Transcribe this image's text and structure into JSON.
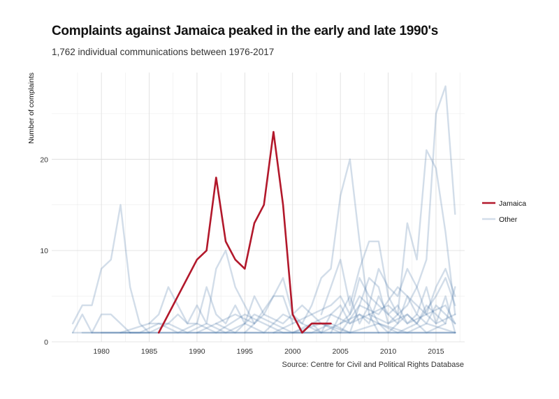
{
  "header": {
    "title": "Complaints against Jamaica peaked in the early and late 1990's",
    "subtitle": "1,762 individual communications between 1976-2017"
  },
  "footer": {
    "caption": "Source: Centre for Civil and Political Rights Database"
  },
  "chart_data": {
    "type": "line",
    "ylabel": "Number of complaints",
    "xlabel": "",
    "xlim": [
      1974.8,
      2018
    ],
    "ylim": [
      0,
      29.5
    ],
    "x_ticks": [
      "1980",
      "1985",
      "1990",
      "1995",
      "2000",
      "2005",
      "2010",
      "2015"
    ],
    "y_ticks": [
      "0",
      "10",
      "20"
    ],
    "grid": true,
    "legend_position": "right",
    "colors": {
      "jamaica": "#b2182b",
      "other": "#4a77a8"
    },
    "series": [
      {
        "name": "Jamaica",
        "highlight": true,
        "points": [
          [
            1986,
            1
          ],
          [
            1990,
            9
          ],
          [
            1991,
            10
          ],
          [
            1992,
            18
          ],
          [
            1993,
            11
          ],
          [
            1994,
            9
          ],
          [
            1995,
            8
          ],
          [
            1996,
            13
          ],
          [
            1997,
            15
          ],
          [
            1998,
            23
          ],
          [
            1999,
            15
          ],
          [
            2000,
            3
          ],
          [
            2001,
            1
          ],
          [
            2002,
            2
          ],
          [
            2003,
            2
          ],
          [
            2004,
            2
          ]
        ]
      },
      {
        "name": "Other",
        "points": [
          [
            1977,
            2
          ],
          [
            1978,
            4
          ],
          [
            1979,
            4
          ],
          [
            1980,
            8
          ],
          [
            1981,
            9
          ],
          [
            1982,
            15
          ],
          [
            1983,
            6
          ],
          [
            1984,
            2
          ],
          [
            1985,
            1
          ]
        ]
      },
      {
        "name": "Other",
        "points": [
          [
            1977,
            1
          ],
          [
            1978,
            3
          ],
          [
            1979,
            1
          ],
          [
            1980,
            3
          ],
          [
            1981,
            3
          ],
          [
            1982,
            2
          ],
          [
            1983,
            1
          ]
        ]
      },
      {
        "name": "Other",
        "points": [
          [
            1978,
            1
          ],
          [
            1980,
            1
          ],
          [
            1982,
            1
          ],
          [
            1985,
            2
          ],
          [
            1986,
            3
          ],
          [
            1987,
            6
          ],
          [
            1988,
            4
          ],
          [
            1989,
            2
          ],
          [
            1990,
            4
          ],
          [
            1991,
            2
          ],
          [
            1992,
            8
          ],
          [
            1993,
            10
          ],
          [
            1994,
            6
          ],
          [
            1995,
            4
          ],
          [
            1996,
            2
          ]
        ]
      },
      {
        "name": "Other",
        "points": [
          [
            1985,
            2
          ],
          [
            1987,
            2
          ],
          [
            1988,
            3
          ],
          [
            1989,
            2
          ],
          [
            1990,
            2
          ],
          [
            1991,
            6
          ],
          [
            1992,
            3
          ],
          [
            1993,
            2
          ],
          [
            1994,
            4
          ],
          [
            1995,
            2
          ],
          [
            1996,
            5
          ],
          [
            1997,
            3
          ],
          [
            1998,
            5
          ],
          [
            1999,
            5
          ],
          [
            2000,
            2
          ]
        ]
      },
      {
        "name": "Other",
        "points": [
          [
            1992,
            2
          ],
          [
            1994,
            3
          ],
          [
            1996,
            2
          ],
          [
            1998,
            5
          ],
          [
            1999,
            7
          ],
          [
            2000,
            3
          ],
          [
            2001,
            2
          ],
          [
            2002,
            4
          ],
          [
            2003,
            7
          ],
          [
            2004,
            8
          ],
          [
            2005,
            16
          ],
          [
            2006,
            20
          ],
          [
            2007,
            11
          ],
          [
            2008,
            3
          ],
          [
            2009,
            1
          ]
        ]
      },
      {
        "name": "Other",
        "points": [
          [
            2003,
            3
          ],
          [
            2004,
            6
          ],
          [
            2005,
            9
          ],
          [
            2006,
            4
          ],
          [
            2007,
            8
          ],
          [
            2008,
            11
          ],
          [
            2009,
            11
          ],
          [
            2010,
            5
          ],
          [
            2011,
            3
          ],
          [
            2012,
            13
          ],
          [
            2013,
            9
          ],
          [
            2014,
            21
          ],
          [
            2015,
            19
          ],
          [
            2016,
            12
          ],
          [
            2017,
            3
          ]
        ]
      },
      {
        "name": "Other",
        "points": [
          [
            2008,
            3
          ],
          [
            2010,
            2
          ],
          [
            2011,
            3
          ],
          [
            2012,
            4
          ],
          [
            2013,
            6
          ],
          [
            2014,
            9
          ],
          [
            2015,
            25
          ],
          [
            2016,
            28
          ],
          [
            2017,
            14
          ]
        ]
      },
      {
        "name": "Other",
        "points": [
          [
            2005,
            2
          ],
          [
            2006,
            3
          ],
          [
            2007,
            5
          ],
          [
            2008,
            4
          ],
          [
            2009,
            8
          ],
          [
            2010,
            6
          ],
          [
            2011,
            5
          ],
          [
            2012,
            8
          ],
          [
            2013,
            6
          ],
          [
            2014,
            3
          ],
          [
            2015,
            6
          ],
          [
            2016,
            8
          ],
          [
            2017,
            5
          ]
        ]
      },
      {
        "name": "Other",
        "points": [
          [
            1998,
            1
          ],
          [
            2000,
            2
          ],
          [
            2002,
            3
          ],
          [
            2004,
            4
          ],
          [
            2005,
            5
          ],
          [
            2006,
            3
          ],
          [
            2007,
            7
          ],
          [
            2008,
            5
          ],
          [
            2009,
            4
          ],
          [
            2010,
            3
          ],
          [
            2011,
            2
          ],
          [
            2012,
            3
          ],
          [
            2013,
            2
          ],
          [
            2014,
            4
          ],
          [
            2015,
            3
          ],
          [
            2016,
            2
          ],
          [
            2017,
            6
          ]
        ]
      },
      {
        "name": "Other",
        "points": [
          [
            1990,
            1
          ],
          [
            1992,
            2
          ],
          [
            1994,
            1
          ],
          [
            1996,
            3
          ],
          [
            1998,
            2
          ],
          [
            2000,
            1
          ],
          [
            2002,
            2
          ],
          [
            2004,
            3
          ],
          [
            2006,
            2
          ],
          [
            2008,
            3
          ],
          [
            2010,
            4
          ],
          [
            2012,
            2
          ],
          [
            2014,
            3
          ],
          [
            2016,
            4
          ],
          [
            2017,
            2
          ]
        ]
      },
      {
        "name": "Other",
        "points": [
          [
            1983,
            1
          ],
          [
            1985,
            1
          ],
          [
            1987,
            2
          ],
          [
            1989,
            1
          ],
          [
            1991,
            2
          ],
          [
            1993,
            1
          ],
          [
            1995,
            2
          ],
          [
            1997,
            1
          ],
          [
            1999,
            3
          ],
          [
            2001,
            2
          ],
          [
            2003,
            1
          ],
          [
            2005,
            2
          ],
          [
            2007,
            3
          ],
          [
            2009,
            2
          ],
          [
            2011,
            1
          ],
          [
            2013,
            2
          ],
          [
            2015,
            5
          ],
          [
            2016,
            7
          ],
          [
            2017,
            4
          ]
        ]
      },
      {
        "name": "Other",
        "points": [
          [
            2001,
            1
          ],
          [
            2002,
            2
          ],
          [
            2003,
            1
          ],
          [
            2004,
            3
          ],
          [
            2005,
            4
          ],
          [
            2006,
            2
          ],
          [
            2007,
            3
          ],
          [
            2008,
            2
          ],
          [
            2009,
            5
          ],
          [
            2010,
            3
          ],
          [
            2011,
            4
          ],
          [
            2012,
            2
          ],
          [
            2013,
            3
          ],
          [
            2014,
            2
          ],
          [
            2015,
            4
          ],
          [
            2016,
            3
          ],
          [
            2017,
            2
          ]
        ]
      },
      {
        "name": "Other",
        "points": [
          [
            1979,
            1
          ],
          [
            1981,
            1
          ],
          [
            1984,
            1
          ],
          [
            1986,
            2
          ],
          [
            1988,
            1
          ],
          [
            1990,
            2
          ],
          [
            1992,
            1
          ],
          [
            1995,
            3
          ],
          [
            1997,
            2
          ],
          [
            1999,
            1
          ],
          [
            2002,
            1
          ],
          [
            2004,
            2
          ],
          [
            2006,
            1
          ],
          [
            2009,
            2
          ],
          [
            2012,
            1
          ],
          [
            2014,
            2
          ],
          [
            2017,
            1
          ]
        ]
      },
      {
        "name": "Other",
        "points": [
          [
            2000,
            1
          ],
          [
            2003,
            2
          ],
          [
            2006,
            1
          ],
          [
            2008,
            7
          ],
          [
            2009,
            6
          ],
          [
            2010,
            2
          ],
          [
            2012,
            3
          ],
          [
            2014,
            1
          ],
          [
            2016,
            2
          ]
        ]
      },
      {
        "name": "Other",
        "points": [
          [
            1995,
            1
          ],
          [
            1997,
            3
          ],
          [
            1999,
            2
          ],
          [
            2001,
            4
          ],
          [
            2003,
            2
          ],
          [
            2005,
            1
          ],
          [
            2007,
            4
          ],
          [
            2009,
            3
          ],
          [
            2011,
            6
          ],
          [
            2013,
            4
          ],
          [
            2015,
            2
          ],
          [
            2017,
            3
          ]
        ]
      },
      {
        "name": "Other",
        "points": [
          [
            2004,
            1
          ],
          [
            2005,
            3
          ],
          [
            2006,
            5
          ],
          [
            2007,
            2
          ],
          [
            2008,
            4
          ],
          [
            2009,
            2
          ],
          [
            2010,
            1
          ],
          [
            2011,
            2
          ],
          [
            2012,
            5
          ],
          [
            2013,
            3
          ],
          [
            2014,
            6
          ],
          [
            2015,
            2
          ],
          [
            2016,
            5
          ],
          [
            2017,
            1
          ]
        ]
      },
      {
        "name": "Other",
        "points": [
          [
            1977,
            1
          ],
          [
            1985,
            1
          ],
          [
            1990,
            1
          ],
          [
            1995,
            1
          ],
          [
            2000,
            1
          ],
          [
            2005,
            1
          ],
          [
            2010,
            1
          ],
          [
            2015,
            1
          ],
          [
            2017,
            1
          ]
        ]
      },
      {
        "name": "Other",
        "points": [
          [
            1980,
            1
          ],
          [
            1984,
            1
          ],
          [
            1988,
            1
          ],
          [
            1992,
            1
          ],
          [
            1996,
            1
          ],
          [
            2000,
            1
          ],
          [
            2004,
            1
          ],
          [
            2008,
            1
          ],
          [
            2012,
            1
          ],
          [
            2016,
            1
          ],
          [
            2017,
            1
          ]
        ]
      },
      {
        "name": "Other",
        "points": [
          [
            1982,
            1
          ],
          [
            1987,
            1
          ],
          [
            1991,
            1
          ],
          [
            1994,
            1
          ],
          [
            1998,
            1
          ],
          [
            2002,
            1
          ],
          [
            2006,
            1
          ],
          [
            2009,
            1
          ],
          [
            2011,
            1
          ],
          [
            2013,
            1
          ],
          [
            2014,
            1
          ],
          [
            2017,
            1
          ]
        ]
      }
    ]
  }
}
